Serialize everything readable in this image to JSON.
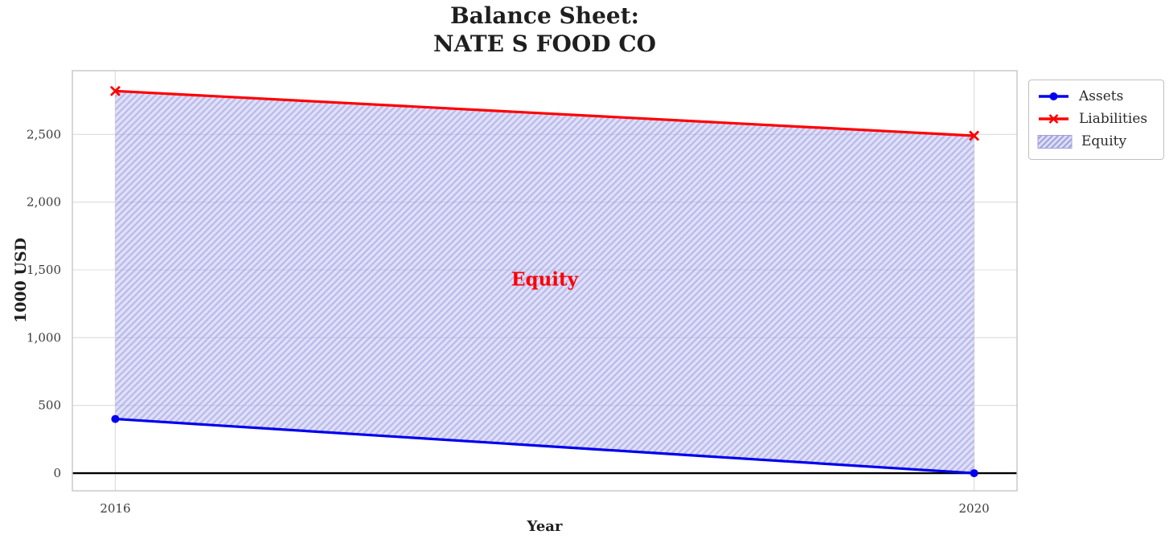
{
  "chart_data": {
    "type": "line",
    "title": "Balance Sheet: NATE S FOOD CO",
    "title_lines": [
      "Balance Sheet:",
      "NATE S FOOD CO"
    ],
    "xlabel": "Year",
    "ylabel": "1000 USD",
    "x": [
      2016,
      2020
    ],
    "xtick_labels": [
      "2016",
      "2020"
    ],
    "series": [
      {
        "name": "Assets",
        "values": [
          400,
          0
        ],
        "color": "#0000ee",
        "marker": "circle",
        "line_width": 3.2
      },
      {
        "name": "Liabilities",
        "values": [
          2820,
          2490
        ],
        "color": "#ff0000",
        "marker": "x",
        "line_width": 3.2
      }
    ],
    "fill_between": {
      "name": "Equity",
      "lower_series": "Assets",
      "upper_series": "Liabilities",
      "fill_color": "#b8b8ef",
      "fill_opacity": 0.45,
      "hatch": "//",
      "hatch_color": "#6a6ad2",
      "hatch_opacity": 0.32
    },
    "annotation": {
      "text": "Equity",
      "x": 2018,
      "y": 1430,
      "color": "#ff0000"
    },
    "yticks": {
      "values": [
        0,
        500,
        1000,
        1500,
        2000,
        2500
      ],
      "labels": [
        "0",
        "500",
        "1,000",
        "1,500",
        "2,000",
        "2,500"
      ]
    },
    "xlim": [
      2015.8,
      2020.2
    ],
    "ylim": [
      -130,
      2970
    ],
    "grid": true,
    "zero_line": {
      "y": 0,
      "color": "#000000"
    },
    "legend": {
      "position": "outside upper right",
      "items": [
        "Assets",
        "Liabilities",
        "Equity"
      ]
    }
  },
  "styles": {
    "grid_color": "#dcdcdc",
    "spine_color": "#c6c6c6",
    "tick_color": "#3b3b3b",
    "text_color": "#1f1f1f",
    "background": "#ffffff",
    "legend_patch_edge": "#a0a0dc",
    "legend_patch_fill": "#dcdcf6"
  }
}
